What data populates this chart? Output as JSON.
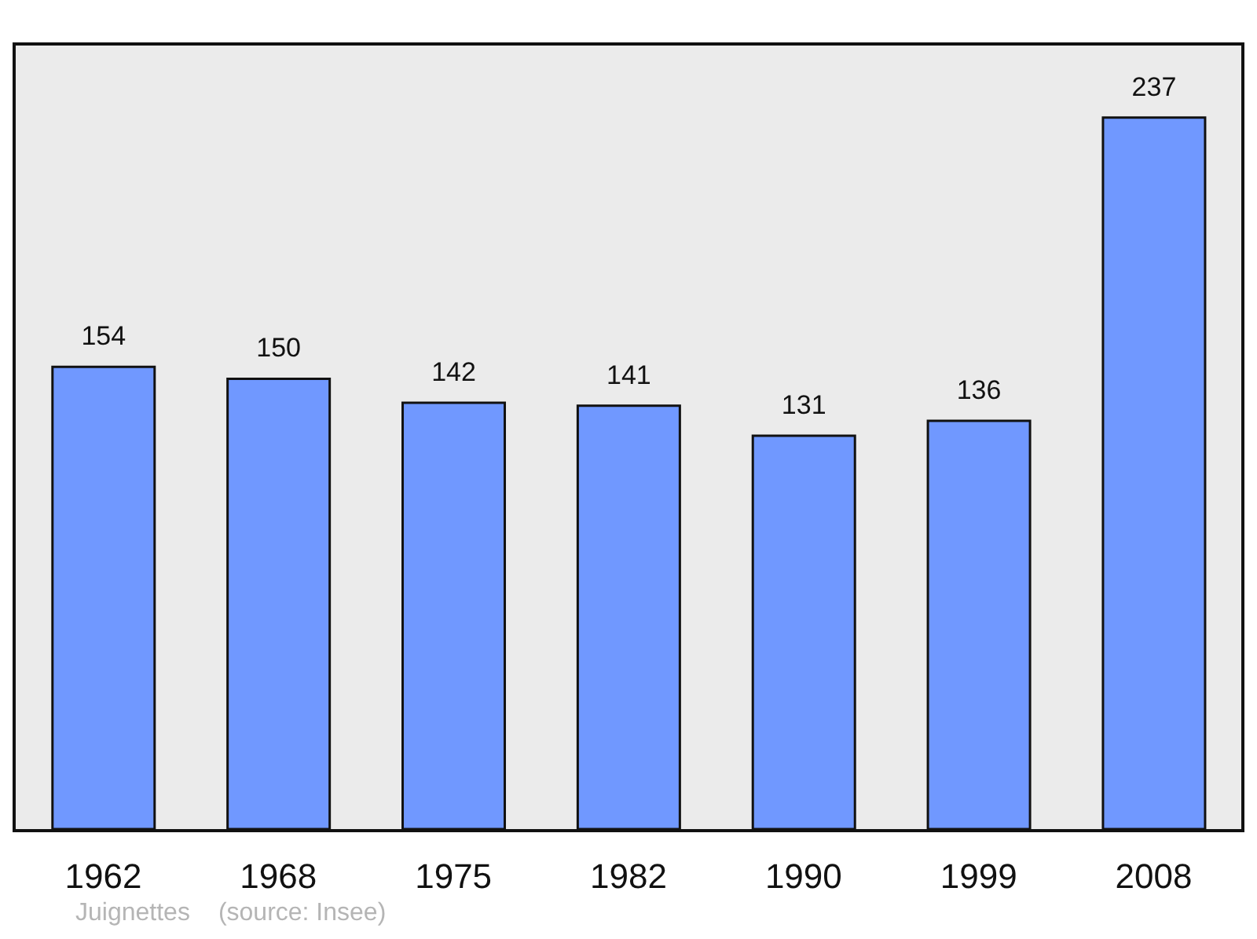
{
  "chart_data": {
    "type": "bar",
    "categories": [
      "1962",
      "1968",
      "1975",
      "1982",
      "1990",
      "1999",
      "2008"
    ],
    "values": [
      154,
      150,
      142,
      141,
      131,
      136,
      237
    ],
    "color": "#7098ff",
    "ylim": [
      0,
      261
    ],
    "data_labels": true,
    "annotations": [
      "Juignettes",
      "(source: Insee)"
    ]
  }
}
